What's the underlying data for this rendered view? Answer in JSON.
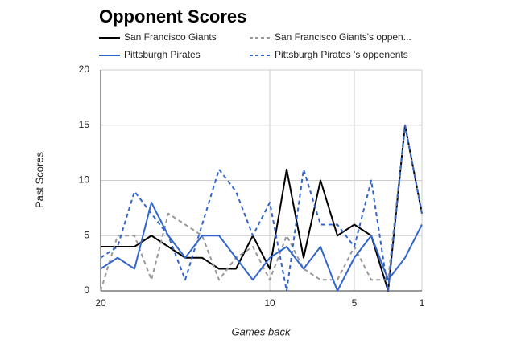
{
  "chart_data": {
    "type": "line",
    "title": "Opponent Scores",
    "x_label": "Games back",
    "y_label": "Past Scores",
    "x": [
      20,
      19,
      18,
      17,
      16,
      15,
      14,
      13,
      12,
      11,
      10,
      9,
      8,
      7,
      6,
      5,
      4,
      3,
      2,
      1
    ],
    "xlim": [
      20,
      1
    ],
    "xticks": [
      20,
      10,
      5,
      1
    ],
    "ylim": [
      0,
      20
    ],
    "yticks": [
      0,
      5,
      10,
      15,
      20
    ],
    "grid": true,
    "series": [
      {
        "name": "San Francisco Giants",
        "color": "#000000",
        "dashed": false,
        "values": [
          4,
          4,
          4,
          5,
          4,
          3,
          3,
          2,
          2,
          5,
          2,
          11,
          3,
          10,
          5,
          6,
          5,
          0,
          15,
          7
        ]
      },
      {
        "name": "San Francisco Giants's oppen...",
        "color": "#999999",
        "dashed": true,
        "values": [
          0,
          5,
          5,
          1,
          7,
          6,
          5,
          1,
          3,
          4,
          1,
          5,
          2,
          1,
          1,
          4,
          1,
          1,
          15,
          7
        ]
      },
      {
        "name": "Pittsburgh Pirates",
        "color": "#3366cc",
        "dashed": false,
        "values": [
          2,
          3,
          2,
          8,
          5,
          3,
          5,
          5,
          3,
          1,
          3,
          4,
          2,
          4,
          0,
          3,
          5,
          1,
          3,
          6
        ]
      },
      {
        "name": "Pittsburgh Pirates 's oppenents",
        "color": "#3366cc",
        "dashed": true,
        "values": [
          3,
          4,
          9,
          7,
          5,
          1,
          6,
          11,
          9,
          5,
          8,
          0,
          11,
          6,
          6,
          4,
          10,
          0,
          15,
          7
        ]
      }
    ]
  }
}
